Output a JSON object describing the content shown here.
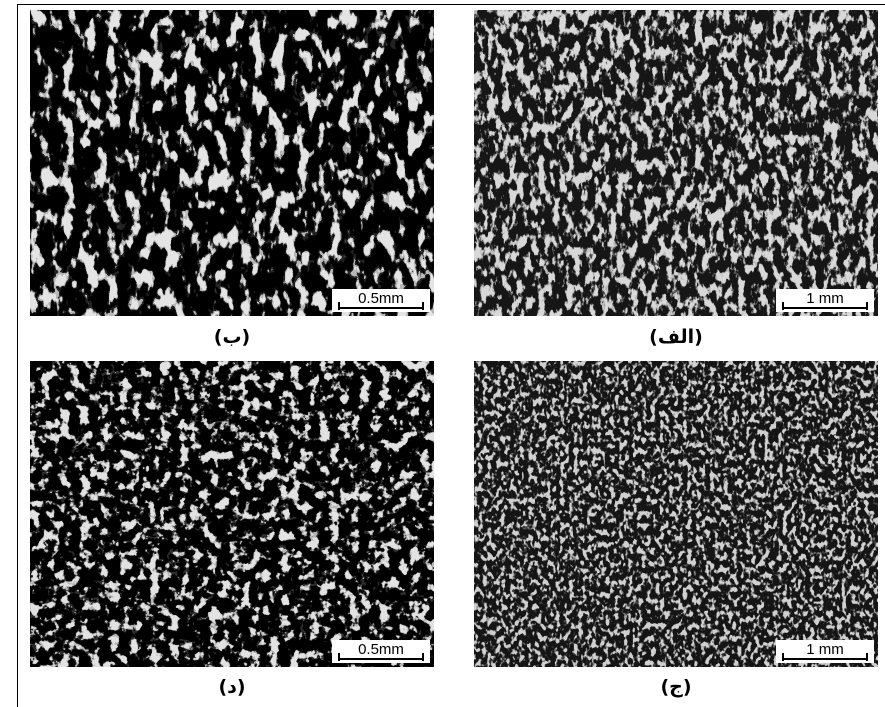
{
  "panels": [
    {
      "label": "(ب)",
      "scale": "0.5mm"
    },
    {
      "label": "(الف)",
      "scale": "1 mm"
    },
    {
      "label": "(د)",
      "scale": "0.5mm"
    },
    {
      "label": "(ج)",
      "scale": "1 mm"
    }
  ]
}
